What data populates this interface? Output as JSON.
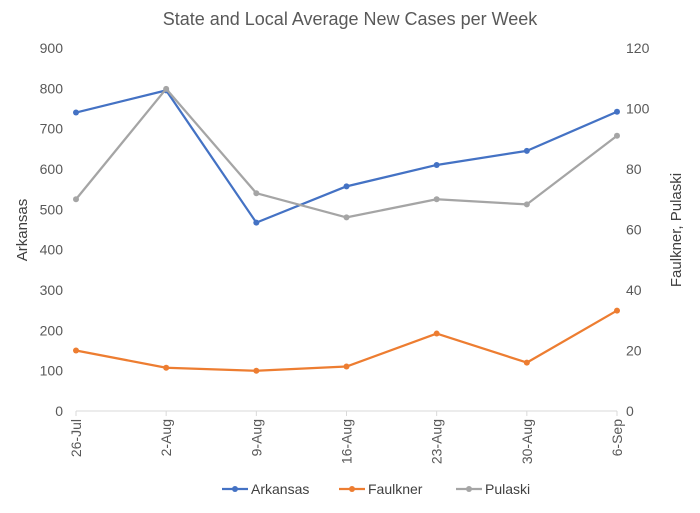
{
  "chart_data": {
    "type": "line",
    "title": "State and Local Average New Cases per Week",
    "categories": [
      "26-Jul",
      "2-Aug",
      "9-Aug",
      "16-Aug",
      "23-Aug",
      "30-Aug",
      "6-Sep"
    ],
    "ylabel": "Arkansas",
    "y2label": "Faulkner, Pulaski",
    "ylim": [
      0,
      900
    ],
    "y2lim": [
      0,
      120
    ],
    "yticks": [
      0,
      100,
      200,
      300,
      400,
      500,
      600,
      700,
      800,
      900
    ],
    "y2ticks": [
      0,
      20,
      40,
      60,
      80,
      100,
      120
    ],
    "grid": false,
    "legend": "bottom",
    "series": [
      {
        "name": "Arkansas",
        "axis": "left",
        "color": "#4472C4",
        "values": [
          740,
          795,
          467,
          557,
          610,
          645,
          742
        ]
      },
      {
        "name": "Faulkner",
        "axis": "right",
        "color": "#ED7D31",
        "values": [
          20,
          14.3,
          13.3,
          14.7,
          25.6,
          16,
          33.2
        ]
      },
      {
        "name": "Pulaski",
        "axis": "right",
        "color": "#A5A5A5",
        "values": [
          70,
          106.5,
          72,
          64,
          70,
          68.3,
          91
        ]
      }
    ]
  }
}
